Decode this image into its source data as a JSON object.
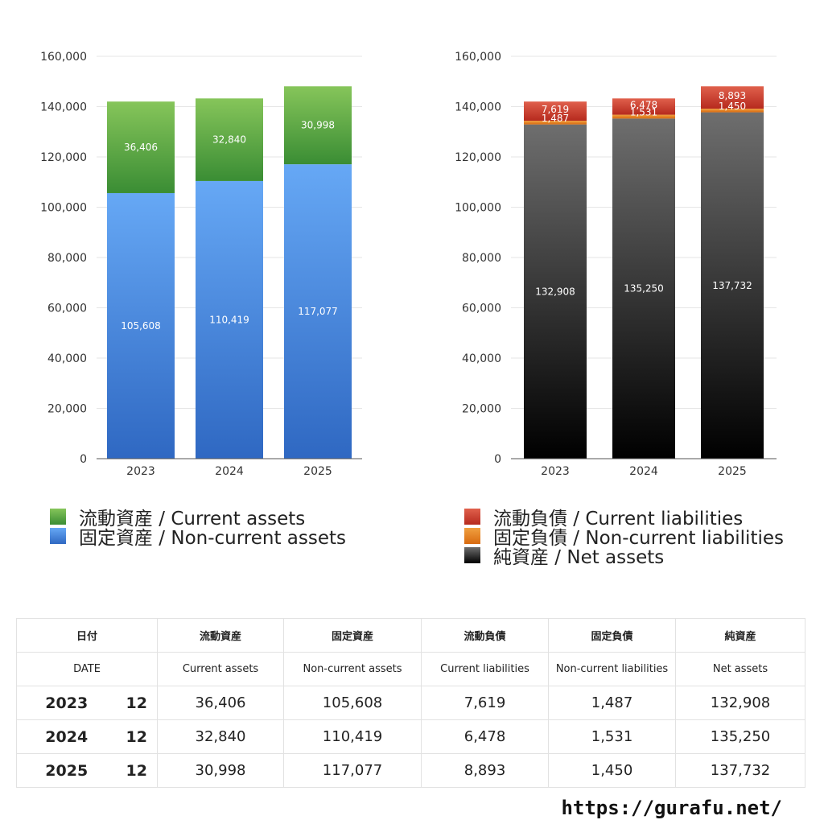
{
  "chart_data": [
    {
      "type": "bar",
      "stacked": true,
      "categories": [
        "2023",
        "2024",
        "2025"
      ],
      "ylim": [
        0,
        160000
      ],
      "y_ticks": [
        "0",
        "20,000",
        "40,000",
        "60,000",
        "80,000",
        "100,000",
        "120,000",
        "140,000",
        "160,000"
      ],
      "grid": true,
      "legend_position": "bottom",
      "series": [
        {
          "name": "固定資産 / Non-current assets",
          "values": [
            105608,
            110419,
            117077
          ],
          "labels": [
            "105,608",
            "110,419",
            "117,077"
          ],
          "color_top": "#66a8f5",
          "color_bottom": "#2f68c2"
        },
        {
          "name": "流動資産 / Current assets",
          "values": [
            36406,
            32840,
            30998
          ],
          "labels": [
            "36,406",
            "32,840",
            "30,998"
          ],
          "color_top": "#86c55a",
          "color_bottom": "#3a8d34"
        }
      ],
      "legend": [
        {
          "label": "流動資産 / Current assets",
          "color_top": "#86c55a",
          "color_bottom": "#3a8d34"
        },
        {
          "label": "固定資産 / Non-current assets",
          "color_top": "#66a8f5",
          "color_bottom": "#2f68c2"
        }
      ]
    },
    {
      "type": "bar",
      "stacked": true,
      "categories": [
        "2023",
        "2024",
        "2025"
      ],
      "ylim": [
        0,
        160000
      ],
      "y_ticks": [
        "0",
        "20,000",
        "40,000",
        "60,000",
        "80,000",
        "100,000",
        "120,000",
        "140,000",
        "160,000"
      ],
      "grid": true,
      "legend_position": "bottom",
      "series": [
        {
          "name": "純資産 / Net assets",
          "values": [
            132908,
            135250,
            137732
          ],
          "labels": [
            "132,908",
            "135,250",
            "137,732"
          ],
          "color_top": "#6e6e6e",
          "color_bottom": "#000000"
        },
        {
          "name": "固定負債 / Non-current liabilities",
          "values": [
            1487,
            1531,
            1450
          ],
          "labels": [
            "1,487",
            "1,531",
            "1,450"
          ],
          "color_top": "#f0a040",
          "color_bottom": "#d86a10"
        },
        {
          "name": "流動負債 / Current liabilities",
          "values": [
            7619,
            6478,
            8893
          ],
          "labels": [
            "7,619",
            "6,478",
            "8,893"
          ],
          "color_top": "#e0604c",
          "color_bottom": "#b62a1e"
        }
      ],
      "legend": [
        {
          "label": "流動負債 / Current liabilities",
          "color_top": "#e0604c",
          "color_bottom": "#b62a1e"
        },
        {
          "label": "固定負債 / Non-current liabilities",
          "color_top": "#f0a040",
          "color_bottom": "#d86a10"
        },
        {
          "label": "純資産 / Net assets",
          "color_top": "#6e6e6e",
          "color_bottom": "#000000"
        }
      ]
    }
  ],
  "table": {
    "header_jp": [
      "日付",
      "流動資産",
      "固定資産",
      "流動負債",
      "固定負債",
      "純資産"
    ],
    "header_en": [
      "DATE",
      "Current assets",
      "Non-current assets",
      "Current liabilities",
      "Non-current liabilities",
      "Net assets"
    ],
    "rows": [
      {
        "year": "2023",
        "month": "12",
        "values": [
          "36,406",
          "105,608",
          "7,619",
          "1,487",
          "132,908"
        ]
      },
      {
        "year": "2024",
        "month": "12",
        "values": [
          "32,840",
          "110,419",
          "6,478",
          "1,531",
          "135,250"
        ]
      },
      {
        "year": "2025",
        "month": "12",
        "values": [
          "30,998",
          "117,077",
          "8,893",
          "1,450",
          "137,732"
        ]
      }
    ]
  },
  "footer": {
    "url": "https://gurafu.net/"
  }
}
